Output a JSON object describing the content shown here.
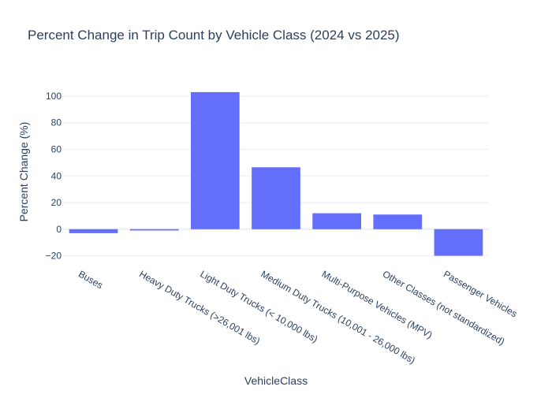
{
  "chart_data": {
    "type": "bar",
    "title": "Percent Change in Trip Count by Vehicle Class (2024 vs 2025)",
    "xlabel": "VehicleClass",
    "ylabel": "Percent Change (%)",
    "categories": [
      "Buses",
      "Heavy Duty Trucks (>26,001 lbs)",
      "Light Duty Trucks (< 10,000 lbs)",
      "Medium Duty Trucks (10,001 - 26,000 lbs)",
      "Multi-Purpose Vehicles (MPV)",
      "Other Classes (not standardized)",
      "Passenger Vehicles"
    ],
    "values": [
      -3,
      -1,
      103,
      46.5,
      12,
      11,
      -20
    ],
    "ylim": [
      -25,
      113
    ],
    "yticks": [
      -20,
      0,
      20,
      40,
      60,
      80,
      100
    ],
    "ytick_labels": [
      "−20",
      "0",
      "20",
      "40",
      "60",
      "80",
      "100"
    ],
    "grid": true,
    "bar_color": "#636efa",
    "background": "#ffffff",
    "gridline_color": "#ebeef3"
  }
}
